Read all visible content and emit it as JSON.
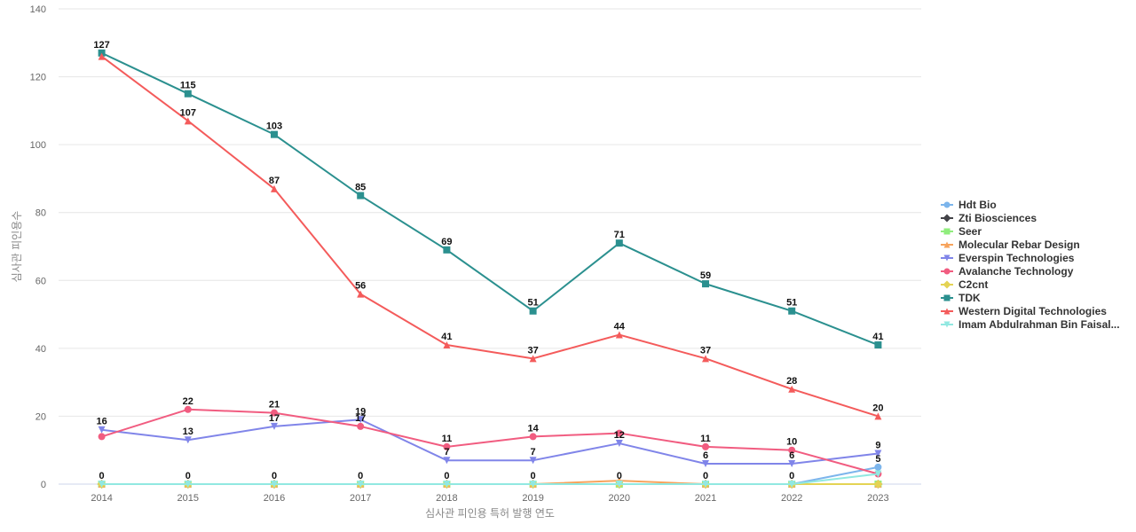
{
  "chart_data": {
    "type": "line",
    "xlabel": "심사관 피인용 특허 발행 연도",
    "ylabel": "심사관 피인용수",
    "x": [
      "2014",
      "2015",
      "2016",
      "2017",
      "2018",
      "2019",
      "2020",
      "2021",
      "2022",
      "2023"
    ],
    "ylim": [
      0,
      140
    ],
    "yticks": [
      0,
      20,
      40,
      60,
      80,
      100,
      120,
      140
    ],
    "grid": true,
    "legend_position": "right",
    "series": [
      {
        "name": "Hdt Bio",
        "color": "#7cb5ec",
        "marker": "circle",
        "values": [
          0,
          0,
          0,
          0,
          0,
          0,
          0,
          0,
          0,
          5
        ]
      },
      {
        "name": "Zti Biosciences",
        "color": "#434348",
        "marker": "diamond",
        "values": [
          0,
          0,
          0,
          0,
          0,
          0,
          0,
          0,
          0,
          0
        ]
      },
      {
        "name": "Seer",
        "color": "#90ed7d",
        "marker": "square",
        "values": [
          0,
          0,
          0,
          0,
          0,
          0,
          0,
          0,
          0,
          0
        ]
      },
      {
        "name": "Molecular Rebar Design",
        "color": "#f7a35c",
        "marker": "triangle",
        "values": [
          0,
          0,
          0,
          0,
          0,
          0,
          1,
          0,
          0,
          0
        ]
      },
      {
        "name": "Everspin Technologies",
        "color": "#8085e9",
        "marker": "triangle-down",
        "values": [
          16,
          13,
          17,
          19,
          7,
          7,
          12,
          6,
          6,
          9
        ]
      },
      {
        "name": "Avalanche Technology",
        "color": "#f15c80",
        "marker": "circle",
        "values": [
          14,
          22,
          21,
          17,
          11,
          14,
          15,
          11,
          10,
          3
        ]
      },
      {
        "name": "C2cnt",
        "color": "#e4d354",
        "marker": "diamond",
        "values": [
          0,
          0,
          0,
          0,
          0,
          0,
          0,
          0,
          0,
          0
        ]
      },
      {
        "name": "TDK",
        "color": "#2b908f",
        "marker": "square",
        "values": [
          127,
          115,
          103,
          85,
          69,
          51,
          71,
          59,
          51,
          41
        ]
      },
      {
        "name": "Western Digital Technologies",
        "color": "#f45b5b",
        "marker": "triangle",
        "values": [
          126,
          107,
          87,
          56,
          41,
          37,
          44,
          37,
          28,
          20
        ]
      },
      {
        "name": "Imam Abdulrahman Bin Faisal...",
        "color": "#91e8e1",
        "marker": "triangle-down",
        "values": [
          0,
          0,
          0,
          0,
          0,
          0,
          0,
          0,
          0,
          3
        ]
      }
    ],
    "data_labels": [
      {
        "series": "TDK",
        "points": [
          0,
          1,
          2,
          3,
          4,
          5,
          6,
          7,
          8,
          9
        ]
      },
      {
        "series": "Western Digital Technologies",
        "points": [
          1,
          2,
          3,
          4,
          5,
          6,
          7,
          8,
          9
        ]
      },
      {
        "series": "Everspin Technologies",
        "points": [
          0,
          1,
          2,
          3,
          4,
          5,
          6,
          7,
          8,
          9
        ]
      },
      {
        "series": "Avalanche Technology",
        "points": [
          1,
          2,
          3,
          4,
          5,
          7,
          8
        ]
      },
      {
        "series": "Hdt Bio",
        "points": [
          0,
          1,
          2,
          3,
          4,
          5,
          6,
          7,
          8,
          9
        ]
      }
    ]
  }
}
